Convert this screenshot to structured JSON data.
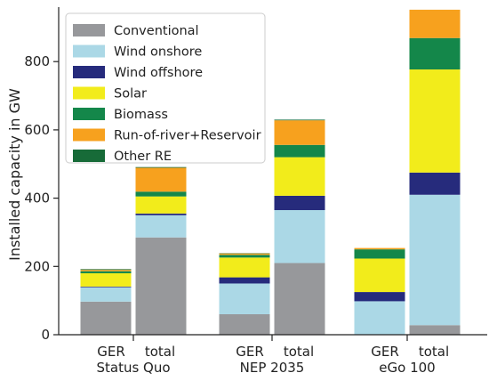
{
  "chart_data": {
    "type": "stacked-bar",
    "ylabel": "Installed capacity in GW",
    "ylim": [
      0,
      950
    ],
    "yticks": [
      0,
      200,
      400,
      600,
      800
    ],
    "groups": [
      "Status Quo",
      "NEP 2035",
      "eGo 100"
    ],
    "bars_per_group": [
      "GER",
      "total"
    ],
    "legend_position": "top-left",
    "grid": false,
    "series": [
      {
        "name": "Conventional",
        "color": "#97989b",
        "values": [
          [
            97,
            285
          ],
          [
            60,
            210
          ],
          [
            0,
            28
          ]
        ]
      },
      {
        "name": "Wind onshore",
        "color": "#abd8e6",
        "values": [
          [
            42,
            65
          ],
          [
            90,
            155
          ],
          [
            98,
            382
          ]
        ]
      },
      {
        "name": "Wind offshore",
        "color": "#262b7c",
        "values": [
          [
            2,
            5
          ],
          [
            18,
            42
          ],
          [
            27,
            65
          ]
        ]
      },
      {
        "name": "Solar",
        "color": "#f2ec1b",
        "values": [
          [
            39,
            50
          ],
          [
            58,
            113
          ],
          [
            98,
            302
          ]
        ]
      },
      {
        "name": "Biomass",
        "color": "#14874a",
        "values": [
          [
            6,
            14
          ],
          [
            8,
            36
          ],
          [
            27,
            92
          ]
        ]
      },
      {
        "name": "Run-of-river+Reservoir",
        "color": "#f7a11e",
        "values": [
          [
            4,
            70
          ],
          [
            4,
            72
          ],
          [
            4,
            83
          ]
        ]
      },
      {
        "name": "Other RE",
        "color": "#176b38",
        "values": [
          [
            2,
            2
          ],
          [
            1,
            2
          ],
          [
            0,
            0
          ]
        ]
      }
    ]
  }
}
